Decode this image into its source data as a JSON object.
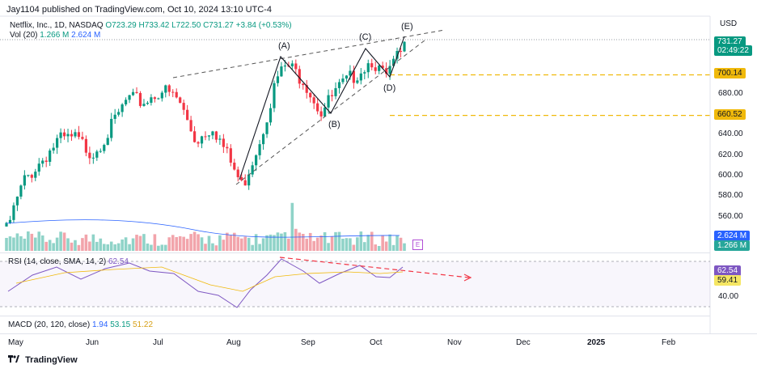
{
  "header": {
    "publisher": "Jay1104 published on TradingView.com, Oct 10, 2024 13:10 UTC-4",
    "symbol": "Netflix, Inc., 1D, NASDAQ",
    "ohlc": {
      "o": "O723.29",
      "h": "H733.42",
      "l": "L722.50",
      "c": "C731.27",
      "chg": "+3.84 (+0.53%)"
    },
    "vol_title": "Vol (20)",
    "vol_val1": "1.266 M",
    "vol_val2": "2.624 M",
    "currency": "USD"
  },
  "price_tags": {
    "last_price": "731.27",
    "countdown": "02:49:22",
    "level1": "700.14",
    "level2": "660.52",
    "vol_tag1": "2.624 M",
    "vol_tag2": "1.266 M",
    "rsi_tag1": "62.54",
    "rsi_tag2": "59.41"
  },
  "price_axis": [
    "680.00",
    "660.00",
    "640.00",
    "620.00",
    "600.00",
    "580.00",
    "560.00"
  ],
  "rsi_axis": [
    "40.00"
  ],
  "rsi": {
    "title": "RSI (14, close, SMA, 14, 2)",
    "value": "62.54"
  },
  "macd": {
    "title": "MACD (20, 120, close)",
    "v1": "1.94",
    "v2": "53.15",
    "v3": "51.22"
  },
  "x_axis": [
    "May",
    "Jun",
    "Jul",
    "Aug",
    "Sep",
    "Oct",
    "Nov",
    "Dec",
    "2025",
    "Feb"
  ],
  "wave_labels": [
    "(A)",
    "(B)",
    "(C)",
    "(D)",
    "(E)"
  ],
  "e_badge": "E",
  "brand": "TradingView",
  "colors": {
    "up": "#089981",
    "down": "#f23645",
    "gold": "#f0b90b",
    "rsi": "#7e57c2",
    "macd_blue": "#2962ff"
  },
  "chart_data": {
    "type": "candlestick",
    "title": "Netflix, Inc., 1D, NASDAQ",
    "ylim": [
      555,
      750
    ],
    "x_ticks": [
      "May",
      "Jun",
      "Jul",
      "Aug",
      "Sep",
      "Oct",
      "Nov",
      "Dec",
      "2025",
      "Feb"
    ],
    "close_series": [
      {
        "date": "2024-05-01",
        "close": 552
      },
      {
        "date": "2024-05-08",
        "close": 600
      },
      {
        "date": "2024-05-15",
        "close": 620
      },
      {
        "date": "2024-05-22",
        "close": 640
      },
      {
        "date": "2024-05-29",
        "close": 642
      },
      {
        "date": "2024-06-05",
        "close": 628
      },
      {
        "date": "2024-06-12",
        "close": 650
      },
      {
        "date": "2024-06-19",
        "close": 680
      },
      {
        "date": "2024-06-26",
        "close": 678
      },
      {
        "date": "2024-07-03",
        "close": 690
      },
      {
        "date": "2024-07-10",
        "close": 680
      },
      {
        "date": "2024-07-17",
        "close": 640
      },
      {
        "date": "2024-07-24",
        "close": 655
      },
      {
        "date": "2024-07-31",
        "close": 620
      },
      {
        "date": "2024-08-05",
        "close": 595
      },
      {
        "date": "2024-08-12",
        "close": 640
      },
      {
        "date": "2024-08-19",
        "close": 700
      },
      {
        "date": "2024-08-23",
        "close": 714
      },
      {
        "date": "2024-08-30",
        "close": 700
      },
      {
        "date": "2024-09-06",
        "close": 668
      },
      {
        "date": "2024-09-13",
        "close": 690
      },
      {
        "date": "2024-09-20",
        "close": 705
      },
      {
        "date": "2024-09-27",
        "close": 720
      },
      {
        "date": "2024-10-02",
        "close": 700
      },
      {
        "date": "2024-10-10",
        "close": 731.27
      }
    ],
    "horizontal_levels": [
      700.14,
      660.52
    ],
    "wave_points": [
      {
        "label": "(A)",
        "date": "2024-08-23",
        "price": 714
      },
      {
        "label": "(B)",
        "date": "2024-09-06",
        "price": 668
      },
      {
        "label": "(C)",
        "date": "2024-09-26",
        "price": 729
      },
      {
        "label": "(D)",
        "date": "2024-10-02",
        "price": 698
      },
      {
        "label": "(E)",
        "date": "2024-10-10",
        "price": 733
      }
    ]
  }
}
